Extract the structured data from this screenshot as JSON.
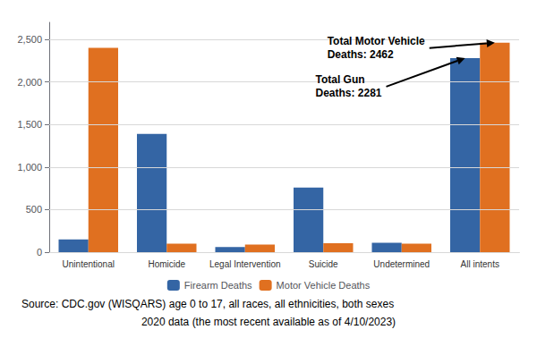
{
  "chart_data": {
    "type": "bar",
    "categories": [
      "Unintentional",
      "Homicide",
      "Legal Intervention",
      "Suicide",
      "Undetermined",
      "All intents"
    ],
    "series": [
      {
        "name": "Firearm Deaths",
        "color": "#3465a4",
        "values": [
          150,
          1390,
          60,
          760,
          110,
          2281
        ]
      },
      {
        "name": "Motor Vehicle Deaths",
        "color": "#e07020",
        "values": [
          2400,
          100,
          90,
          105,
          100,
          2462
        ]
      }
    ],
    "ylim": [
      0,
      2700
    ],
    "yticks": [
      0,
      500,
      1000,
      1500,
      2000,
      2500
    ],
    "grid": true,
    "legend": "bottom",
    "annotations": [
      {
        "text": "Total Motor Vehicle\nDeaths: 2462",
        "category": "All intents",
        "series": "Motor Vehicle Deaths"
      },
      {
        "text": "Total Gun\nDeaths: 2281",
        "category": "All intents",
        "series": "Firearm Deaths"
      }
    ],
    "source": [
      "Source: CDC.gov (WISQARS) age 0 to 17, all races, all ethnicities, both sexes",
      "2020 data (the most recent available as of 4/10/2023)"
    ]
  }
}
